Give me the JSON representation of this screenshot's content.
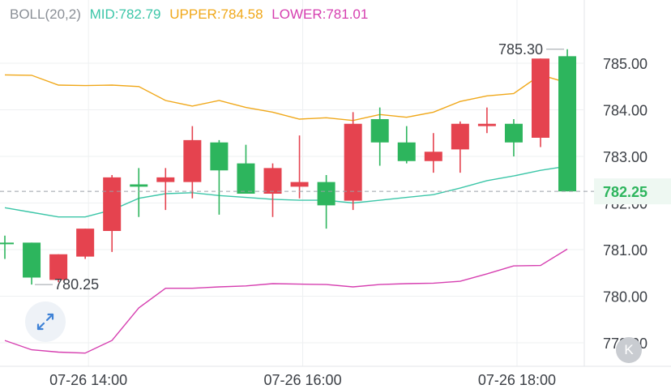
{
  "legend": {
    "name": "BOLL(20,2)",
    "mid_label": "MID:782.79",
    "upper_label": "UPPER:784.58",
    "lower_label": "LOWER:781.01"
  },
  "colors": {
    "up": "#2db55d",
    "down": "#e5434f",
    "mid": "#3cc6a8",
    "upper": "#f0a81a",
    "lower": "#d63fb0",
    "grid": "#eef0f2",
    "axis_text": "#3b3f45",
    "legend_name": "#8a8f96",
    "current_price_bg": "#eef8f2"
  },
  "ui": {
    "expand_icon": "expand-arrows-icon",
    "k_label": "K"
  },
  "chart_data": {
    "type": "candlestick",
    "y_ticks": [
      "785.00",
      "784.00",
      "783.00",
      "782.00",
      "781.00",
      "780.00",
      "779.00"
    ],
    "x_ticks": [
      {
        "label": "07-26 14:00",
        "index": 3
      },
      {
        "label": "07-26 16:00",
        "index": 11
      },
      {
        "label": "07-26 18:00",
        "index": 19
      }
    ],
    "candles": [
      {
        "open": 781.15,
        "high": 781.3,
        "low": 780.8,
        "close": 781.15
      },
      {
        "open": 780.4,
        "high": 781.15,
        "low": 780.25,
        "close": 781.15
      },
      {
        "open": 780.9,
        "high": 780.9,
        "low": 780.3,
        "close": 780.35
      },
      {
        "open": 781.45,
        "high": 781.45,
        "low": 780.8,
        "close": 780.85
      },
      {
        "open": 782.55,
        "high": 782.6,
        "low": 780.95,
        "close": 781.4
      },
      {
        "open": 782.35,
        "high": 782.75,
        "low": 781.7,
        "close": 782.4
      },
      {
        "open": 782.55,
        "high": 782.75,
        "low": 781.85,
        "close": 782.45
      },
      {
        "open": 783.35,
        "high": 783.65,
        "low": 782.1,
        "close": 782.45
      },
      {
        "open": 782.7,
        "high": 783.35,
        "low": 781.75,
        "close": 783.3
      },
      {
        "open": 782.2,
        "high": 783.25,
        "low": 782.2,
        "close": 782.85
      },
      {
        "open": 782.75,
        "high": 782.85,
        "low": 781.7,
        "close": 782.2
      },
      {
        "open": 782.45,
        "high": 783.45,
        "low": 782.1,
        "close": 782.35
      },
      {
        "open": 781.95,
        "high": 782.6,
        "low": 781.45,
        "close": 782.45
      },
      {
        "open": 783.7,
        "high": 783.95,
        "low": 781.85,
        "close": 782.05
      },
      {
        "open": 783.3,
        "high": 784.05,
        "low": 782.8,
        "close": 783.8
      },
      {
        "open": 782.9,
        "high": 783.65,
        "low": 782.85,
        "close": 783.3
      },
      {
        "open": 783.1,
        "high": 783.5,
        "low": 782.65,
        "close": 782.9
      },
      {
        "open": 783.7,
        "high": 783.75,
        "low": 782.65,
        "close": 783.15
      },
      {
        "open": 783.7,
        "high": 784.05,
        "low": 783.5,
        "close": 783.65
      },
      {
        "open": 783.3,
        "high": 783.8,
        "low": 783.0,
        "close": 783.7
      },
      {
        "open": 785.1,
        "high": 785.1,
        "low": 783.2,
        "close": 783.4
      },
      {
        "open": 782.25,
        "high": 785.3,
        "low": 782.25,
        "close": 785.15
      }
    ],
    "boll_upper": [
      784.75,
      784.74,
      784.53,
      784.52,
      784.53,
      784.5,
      784.2,
      784.08,
      784.2,
      784.05,
      783.95,
      783.8,
      783.83,
      783.77,
      783.9,
      783.84,
      783.95,
      784.18,
      784.3,
      784.35,
      784.75,
      784.58
    ],
    "boll_mid": [
      781.9,
      781.8,
      781.7,
      781.7,
      781.85,
      782.1,
      782.2,
      782.22,
      782.16,
      782.12,
      782.08,
      782.06,
      782.06,
      782.0,
      782.06,
      782.12,
      782.18,
      782.32,
      782.48,
      782.58,
      782.7,
      782.79
    ],
    "boll_lower": [
      779.05,
      778.85,
      778.8,
      778.78,
      779.05,
      779.75,
      780.17,
      780.17,
      780.2,
      780.22,
      780.27,
      780.26,
      780.25,
      780.2,
      780.25,
      780.27,
      780.28,
      780.32,
      780.48,
      780.65,
      780.66,
      781.01
    ],
    "annotations": {
      "high_label": "785.30",
      "high_index": 21,
      "high_value": 785.3,
      "low_label": "780.25",
      "low_index": 1,
      "low_value": 780.25
    },
    "current_price": 782.25,
    "current_price_label": "782.25"
  }
}
